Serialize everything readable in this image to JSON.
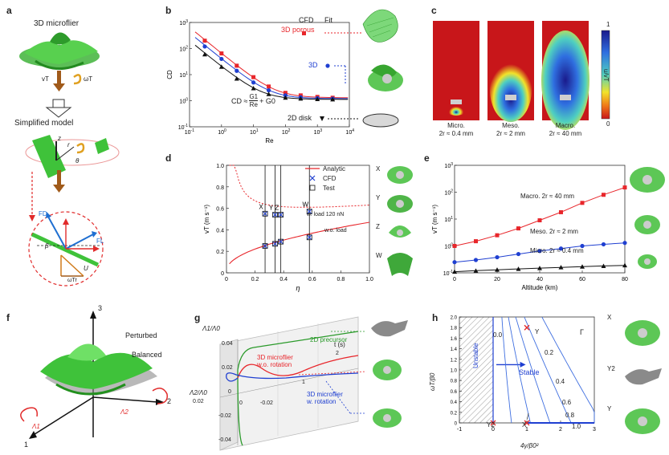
{
  "panels": {
    "a": {
      "label": "a",
      "title": "3D microflier",
      "sub_title": "Simplified model",
      "v_t": "vT",
      "omega_t": "ωT",
      "r": "r",
      "z": "z",
      "theta": "θ",
      "F_D": "FD",
      "F_L": "FL",
      "beta": "β",
      "U": "U",
      "omega_r": "ωTr"
    },
    "b": {
      "label": "b",
      "legend_cfd": "CFD",
      "legend_fit": "Fit",
      "series_labels": [
        "3D porous",
        "3D",
        "2D disk"
      ],
      "formula_lhs": "CD ≈",
      "formula_num": "G1",
      "formula_den": "Re",
      "formula_tail": "+ G0"
    },
    "c": {
      "label": "c",
      "captions": [
        "Micro.",
        "Meso.",
        "Macro."
      ],
      "sizes": [
        "2r ≈ 0.4 mm",
        "2r ≈ 2 mm",
        "2r ≈ 40 mm"
      ],
      "colorbar_top": "1",
      "colorbar_bottom": "0",
      "colorbar_label": "u/vT"
    },
    "d": {
      "label": "d",
      "legend": [
        "Analytic",
        "CFD",
        "Test"
      ],
      "annot_load": "w. load 120 nN",
      "annot_noload": "w.o. load",
      "points": [
        "X",
        "Y",
        "Z",
        "W"
      ],
      "shape_labels": [
        "X",
        "Y",
        "Z",
        "W"
      ]
    },
    "e": {
      "label": "e",
      "series_labels": [
        "Macro. 2r ≈ 40 mm",
        "Meso. 2r ≈ 2 mm",
        "Micro. 2r ≈ 0.4 mm"
      ]
    },
    "f": {
      "label": "f",
      "axis_labels": [
        "1",
        "2",
        "3"
      ],
      "perturbed": "Perturbed",
      "balanced": "Balanced",
      "lambda1": "Λ1",
      "lambda2": "Λ2"
    },
    "g": {
      "label": "g",
      "axis_l1": "Λ1/Λ0",
      "axis_l2": "Λ2/Λ0",
      "axis_t": "t (s)",
      "ticks_l1": [
        "0.04",
        "0.02",
        "0",
        "-0.02",
        "-0.04"
      ],
      "ticks_l2": [
        "0.02",
        "0",
        "-0.02"
      ],
      "ticks_t": [
        "1",
        "2"
      ],
      "series": [
        "2D precursor",
        "3D microflier\nw.o. rotation",
        "3D microflier\nw. rotation"
      ]
    },
    "h": {
      "label": "h",
      "unstable": "Unstable",
      "stable": "Stable",
      "gamma": "Γ",
      "contours": [
        "0.0",
        "0.2",
        "0.4",
        "0.6",
        "0.8",
        "1.0"
      ],
      "points": [
        "Y",
        "Y2",
        "X"
      ],
      "shape_labels": [
        "X",
        "Y2",
        "Y"
      ],
      "xlabel": "4γ/β0²",
      "ylabel": "ωT/β0"
    }
  },
  "chart_data": [
    {
      "type": "line",
      "panel": "b",
      "xlabel": "Re",
      "ylabel": "CD",
      "xscale": "log",
      "yscale": "log",
      "xlim": [
        0.1,
        10000
      ],
      "ylim": [
        0.1,
        1000
      ],
      "xticks": [
        "10^-1",
        "10^0",
        "10^1",
        "10^2",
        "10^3",
        "10^4"
      ],
      "yticks": [
        "10^-1",
        "10^0",
        "10^1",
        "10^2",
        "10^3"
      ],
      "x": [
        0.3,
        1,
        3,
        10,
        30,
        100,
        300,
        1000,
        3000
      ],
      "series": [
        {
          "name": "3D porous",
          "color": "#e8262b",
          "values": [
            200,
            65,
            22,
            8,
            3.5,
            2.0,
            1.6,
            1.4,
            1.3
          ]
        },
        {
          "name": "3D",
          "color": "#1f3fd1",
          "values": [
            120,
            40,
            14,
            5,
            2.5,
            1.6,
            1.35,
            1.25,
            1.2
          ]
        },
        {
          "name": "2D disk",
          "color": "#111111",
          "values": [
            60,
            20,
            7,
            3,
            1.8,
            1.3,
            1.2,
            1.15,
            1.12
          ]
        }
      ]
    },
    {
      "type": "line",
      "panel": "d",
      "xlabel": "η",
      "ylabel": "vT (m s⁻¹)",
      "xlim": [
        0,
        1.0
      ],
      "ylim": [
        0,
        1.0
      ],
      "xticks": [
        "0",
        "0.2",
        "0.4",
        "0.6",
        "0.8",
        "1.0"
      ],
      "yticks": [
        "0",
        "0.2",
        "0.4",
        "0.6",
        "0.8",
        "1.0"
      ],
      "x": [
        0.27,
        0.34,
        0.38,
        0.58
      ],
      "series": [
        {
          "name": "w. load 120 nN",
          "values": [
            0.55,
            0.54,
            0.54,
            0.57
          ]
        },
        {
          "name": "w.o. load",
          "values": [
            0.25,
            0.27,
            0.29,
            0.33
          ]
        }
      ]
    },
    {
      "type": "line",
      "panel": "e",
      "xlabel": "Altitude (km)",
      "ylabel": "vT (m s⁻¹)",
      "yscale": "log",
      "xlim": [
        0,
        80
      ],
      "ylim": [
        0.1,
        1000
      ],
      "xticks": [
        "0",
        "20",
        "40",
        "60",
        "80"
      ],
      "yticks": [
        "10^-1",
        "10^0",
        "10^1",
        "10^2",
        "10^3"
      ],
      "x": [
        0,
        10,
        20,
        30,
        40,
        50,
        60,
        70,
        80
      ],
      "series": [
        {
          "name": "Macro.",
          "color": "#e8262b",
          "values": [
            1.0,
            1.5,
            2.5,
            4.5,
            9,
            18,
            40,
            80,
            150
          ]
        },
        {
          "name": "Meso.",
          "color": "#1f3fd1",
          "values": [
            0.25,
            0.3,
            0.38,
            0.5,
            0.65,
            0.8,
            1.0,
            1.15,
            1.3
          ]
        },
        {
          "name": "Micro.",
          "color": "#111111",
          "values": [
            0.11,
            0.12,
            0.13,
            0.14,
            0.15,
            0.16,
            0.17,
            0.18,
            0.19
          ]
        }
      ]
    },
    {
      "type": "line",
      "panel": "h",
      "xlabel": "4γ/β0²",
      "ylabel": "ωT/β0",
      "xlim": [
        -1,
        3
      ],
      "ylim": [
        0,
        2.0
      ],
      "xticks": [
        "-1",
        "0",
        "1",
        "2",
        "3"
      ],
      "yticks": [
        "0",
        "0.2",
        "0.4",
        "0.6",
        "0.8",
        "1.0",
        "1.2",
        "1.4",
        "1.6",
        "1.8",
        "2.0"
      ],
      "points": [
        {
          "label": "Y",
          "x": 1.0,
          "y": 1.8
        },
        {
          "label": "Y2",
          "x": 0.0,
          "y": 0.0
        },
        {
          "label": "X",
          "x": 1.0,
          "y": 0.0
        }
      ]
    }
  ]
}
